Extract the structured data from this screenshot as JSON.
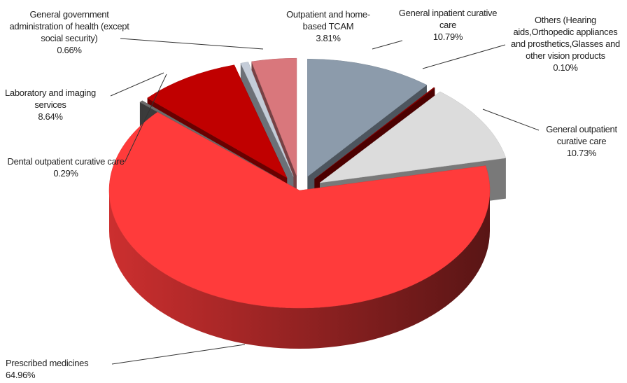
{
  "chart_data": {
    "type": "pie",
    "categories": [
      "General inpatient curative care",
      "Others (Hearing aids,Orthopedic appliances and prosthetics,Glasses and other vision products",
      "General outpatient curative care",
      "Prescribed medicines",
      "Dental outpatient curative care",
      "Laboratory and imaging services",
      "General government administration of health (except social security)",
      "Outpatient and home-based TCAM"
    ],
    "values": [
      10.79,
      0.1,
      10.73,
      64.96,
      0.29,
      8.64,
      0.66,
      3.81
    ],
    "value_labels": [
      "10.79%",
      "0.10%",
      "10.73%",
      "64.96%",
      "0.29%",
      "8.64%",
      "0.66%",
      "3.81%"
    ],
    "colors": [
      "#8c9bab",
      "#8b0000",
      "#dcdcdc",
      "#ff3b3b",
      "#6b6b6b",
      "#c00000",
      "#c4ccd8",
      "#d9777c"
    ]
  }
}
